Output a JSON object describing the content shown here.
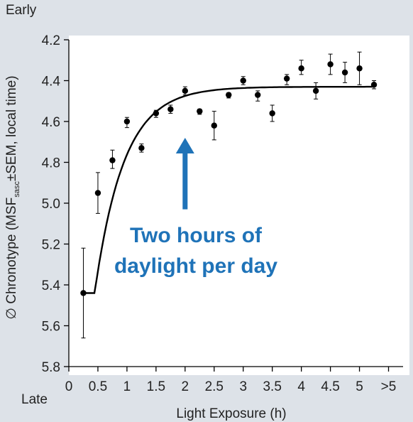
{
  "chart_data": {
    "type": "scatter",
    "title": "",
    "xlabel": "Light Exposure (h)",
    "ylabel_parts": {
      "prefix": "∅ Chronotype (MSF",
      "subscript": "sasc",
      "suffix": "±SEM, local time)"
    },
    "y_top_label": "Early",
    "y_bottom_label": "Late",
    "xlim": [
      0,
      5.75
    ],
    "ylim": [
      4.2,
      5.8
    ],
    "y_reversed": true,
    "x_ticks": [
      {
        "value": 0,
        "label": "0"
      },
      {
        "value": 0.5,
        "label": "0.5"
      },
      {
        "value": 1,
        "label": "1"
      },
      {
        "value": 1.5,
        "label": "1.5"
      },
      {
        "value": 2,
        "label": "2"
      },
      {
        "value": 2.5,
        "label": "2.5"
      },
      {
        "value": 3,
        "label": "3"
      },
      {
        "value": 3.5,
        "label": "3.5"
      },
      {
        "value": 4,
        "label": "4"
      },
      {
        "value": 4.5,
        "label": "4.5"
      },
      {
        "value": 5,
        "label": "5"
      },
      {
        "value": 5.5,
        "label": ">5"
      }
    ],
    "y_ticks": [
      {
        "value": 4.2,
        "label": "4.2"
      },
      {
        "value": 4.4,
        "label": "4.4"
      },
      {
        "value": 4.6,
        "label": "4.6"
      },
      {
        "value": 4.8,
        "label": "4.8"
      },
      {
        "value": 5.0,
        "label": "5.0"
      },
      {
        "value": 5.2,
        "label": "5.2"
      },
      {
        "value": 5.4,
        "label": "5.4"
      },
      {
        "value": 5.6,
        "label": "5.6"
      },
      {
        "value": 5.8,
        "label": "5.8"
      }
    ],
    "points": [
      {
        "x": 0.25,
        "y": 5.44,
        "lo": 5.22,
        "hi": 5.66
      },
      {
        "x": 0.5,
        "y": 4.95,
        "lo": 4.85,
        "hi": 5.05
      },
      {
        "x": 0.75,
        "y": 4.79,
        "lo": 4.74,
        "hi": 4.83
      },
      {
        "x": 1.0,
        "y": 4.6,
        "lo": 4.58,
        "hi": 4.63
      },
      {
        "x": 1.25,
        "y": 4.73,
        "lo": 4.71,
        "hi": 4.75
      },
      {
        "x": 1.5,
        "y": 4.56,
        "lo": 4.545,
        "hi": 4.58
      },
      {
        "x": 1.75,
        "y": 4.54,
        "lo": 4.52,
        "hi": 4.56
      },
      {
        "x": 2.0,
        "y": 4.45,
        "lo": 4.43,
        "hi": 4.47
      },
      {
        "x": 2.25,
        "y": 4.55,
        "lo": 4.54,
        "hi": 4.565
      },
      {
        "x": 2.5,
        "y": 4.62,
        "lo": 4.55,
        "hi": 4.69
      },
      {
        "x": 2.75,
        "y": 4.47,
        "lo": 4.46,
        "hi": 4.485
      },
      {
        "x": 3.0,
        "y": 4.4,
        "lo": 4.38,
        "hi": 4.42
      },
      {
        "x": 3.25,
        "y": 4.47,
        "lo": 4.45,
        "hi": 4.5
      },
      {
        "x": 3.5,
        "y": 4.56,
        "lo": 4.52,
        "hi": 4.6
      },
      {
        "x": 3.75,
        "y": 4.39,
        "lo": 4.37,
        "hi": 4.42
      },
      {
        "x": 4.0,
        "y": 4.34,
        "lo": 4.3,
        "hi": 4.37
      },
      {
        "x": 4.25,
        "y": 4.45,
        "lo": 4.41,
        "hi": 4.49
      },
      {
        "x": 4.5,
        "y": 4.32,
        "lo": 4.27,
        "hi": 4.37
      },
      {
        "x": 4.75,
        "y": 4.36,
        "lo": 4.31,
        "hi": 4.41
      },
      {
        "x": 5.0,
        "y": 4.34,
        "lo": 4.26,
        "hi": 4.42
      },
      {
        "x": 5.25,
        "y": 4.42,
        "lo": 4.4,
        "hi": 4.44
      }
    ],
    "fit_curve": {
      "asymptote": 4.43,
      "initial_offset": 1.55,
      "rate": 2.0,
      "x_start": 0.23,
      "x_end": 5.25
    },
    "annotation": {
      "lines": [
        "Two hours of",
        "daylight per day"
      ],
      "arrow_x": 2.0,
      "arrow_from_y": 5.03,
      "arrow_to_y": 4.68,
      "color": "#1f73b8"
    },
    "colors": {
      "background": "#dde2e8",
      "plot_area": "#ffffff",
      "ink": "#000000",
      "label_text": "#222222"
    },
    "grid": false,
    "legend": "none"
  }
}
